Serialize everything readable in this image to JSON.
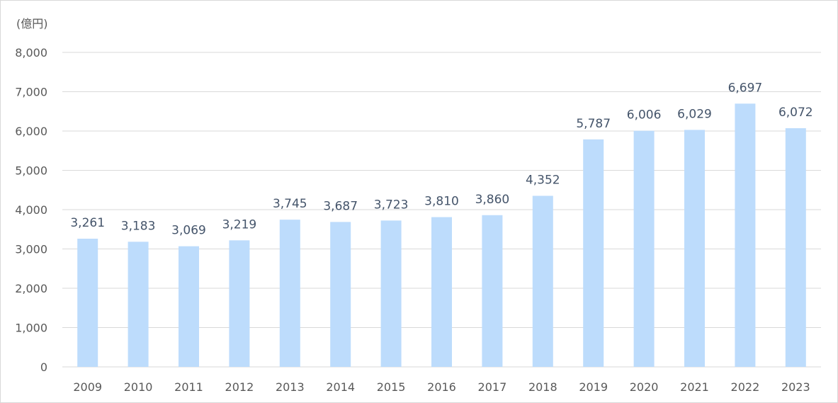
{
  "chart_data": {
    "type": "bar",
    "unit_label": "(億円)",
    "categories": [
      "2009",
      "2010",
      "2011",
      "2012",
      "2013",
      "2014",
      "2015",
      "2016",
      "2017",
      "2018",
      "2019",
      "2020",
      "2021",
      "2022",
      "2023"
    ],
    "values": [
      3261,
      3183,
      3069,
      3219,
      3745,
      3687,
      3723,
      3810,
      3860,
      4352,
      5787,
      6006,
      6029,
      6697,
      6072
    ],
    "data_labels": [
      "3,261",
      "3,183",
      "3,069",
      "3,219",
      "3,745",
      "3,687",
      "3,723",
      "3,810",
      "3,860",
      "4,352",
      "5,787",
      "6,006",
      "6,029",
      "6,697",
      "6,072"
    ],
    "y_ticks": [
      0,
      1000,
      2000,
      3000,
      4000,
      5000,
      6000,
      7000,
      8000
    ],
    "y_tick_labels": [
      "0",
      "1,000",
      "2,000",
      "3,000",
      "4,000",
      "5,000",
      "6,000",
      "7,000",
      "8,000"
    ],
    "ylim": [
      0,
      8000
    ],
    "grid": true,
    "legend": "none",
    "bar_color": "#bddcfc",
    "label_color": "#44546a",
    "grid_color": "#d9d9d9"
  }
}
